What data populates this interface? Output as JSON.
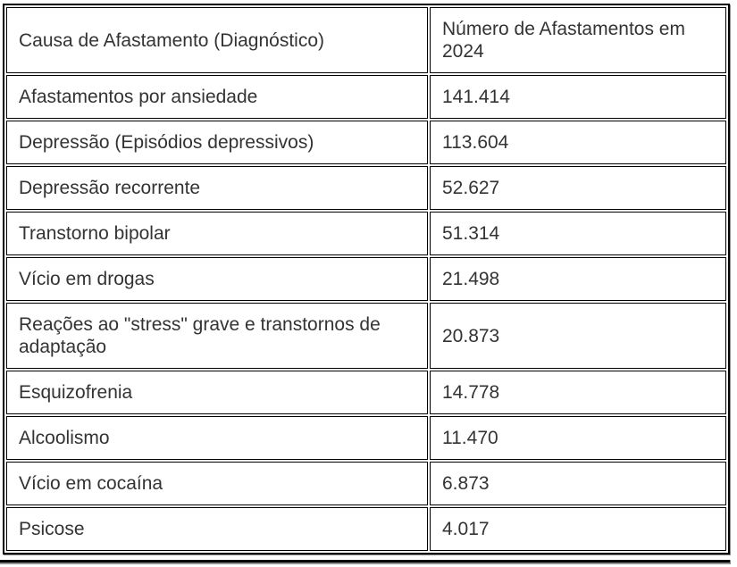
{
  "chart_data": {
    "type": "table",
    "columns": [
      "Causa de Afastamento (Diagnóstico)",
      "Número de Afastamentos em 2024"
    ],
    "rows": [
      [
        "Afastamentos por ansiedade",
        "141.414"
      ],
      [
        "Depressão (Episódios depressivos)",
        "113.604"
      ],
      [
        "Depressão recorrente",
        "52.627"
      ],
      [
        "Transtorno bipolar",
        "51.314"
      ],
      [
        "Vício em drogas",
        "21.498"
      ],
      [
        "Reações ao \"stress\" grave e transtornos de adaptação",
        "20.873"
      ],
      [
        "Esquizofrenia",
        "14.778"
      ],
      [
        "Alcoolismo",
        "11.470"
      ],
      [
        "Vício em cocaína",
        "6.873"
      ],
      [
        "Psicose",
        "4.017"
      ]
    ],
    "values_numeric": [
      141414,
      113604,
      52627,
      51314,
      21498,
      20873,
      14778,
      11470,
      6873,
      4017
    ],
    "layout": {
      "grid": "bordered-cells",
      "legend": "none",
      "header_style": "regular-weight"
    }
  },
  "colors": {
    "border": "#000000",
    "outer_shade": "#8f8f8f",
    "text": "#333333",
    "background": "#ffffff"
  }
}
